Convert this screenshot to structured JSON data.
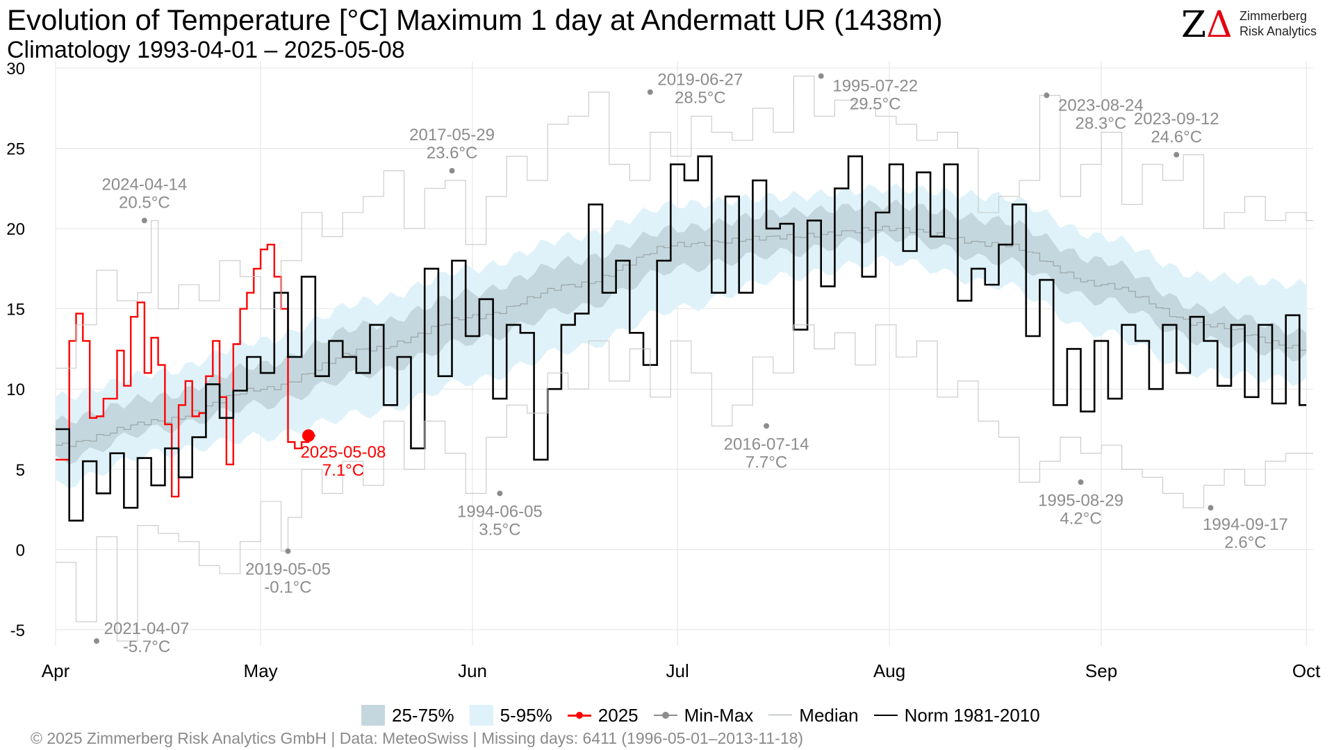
{
  "title": "Evolution of Temperature [°C] Maximum 1 day at Andermatt  UR (1438m)",
  "subtitle": "Climatology 1993-04-01 – 2025-05-08",
  "logo": {
    "brand": "ZA",
    "line1": "Zimmerberg",
    "line2": "Risk Analytics"
  },
  "legend": {
    "band_25_75": "25-75%",
    "band_5_95": "5-95%",
    "current_year": "2025",
    "min_max": "Min-Max",
    "median": "Median",
    "norm": "Norm 1981-2010"
  },
  "footer": "©  2025 Zimmerberg Risk Analytics GmbH | Data: MeteoSwiss | Missing days: 6411 (1996-05-01–2013-11-18)",
  "colors": {
    "current_year": "#ff0000",
    "norm": "#000000",
    "minmax": "#8c8c8c",
    "band_inner": "#c5d7de",
    "band_outer": "#dff2fa",
    "median": "#9aa5a8"
  },
  "chart_data": {
    "type": "line",
    "step": true,
    "x_unit": "day of season (0 = 1 Apr)",
    "x_ticks": [
      {
        "day": 0,
        "label": "Apr"
      },
      {
        "day": 30,
        "label": "May"
      },
      {
        "day": 61,
        "label": "Jun"
      },
      {
        "day": 91,
        "label": "Jul"
      },
      {
        "day": 122,
        "label": "Aug"
      },
      {
        "day": 153,
        "label": "Sep"
      },
      {
        "day": 183,
        "label": "Oct"
      }
    ],
    "xlim": [
      0,
      184
    ],
    "ylim": [
      -6,
      30
    ],
    "y_ticks": [
      -5,
      0,
      5,
      10,
      15,
      20,
      25,
      30
    ],
    "grid": true,
    "legend_position": "bottom",
    "bands": {
      "knots_day": [
        0,
        15,
        30,
        46,
        61,
        76,
        91,
        107,
        122,
        138,
        153,
        168,
        183
      ],
      "p5": [
        4.0,
        6.0,
        7.0,
        8.5,
        10.5,
        12.5,
        15.0,
        17.0,
        18.0,
        16.5,
        13.5,
        11.0,
        10.5
      ],
      "p25": [
        5.5,
        7.5,
        9.0,
        11.0,
        13.0,
        15.0,
        17.5,
        18.5,
        19.5,
        18.0,
        15.5,
        13.0,
        12.0
      ],
      "median": [
        6.5,
        8.0,
        10.0,
        12.5,
        14.5,
        16.5,
        19.0,
        19.5,
        20.0,
        19.0,
        16.5,
        14.0,
        12.5
      ],
      "p75": [
        8.0,
        9.5,
        11.5,
        14.0,
        16.0,
        18.0,
        20.0,
        21.0,
        21.5,
        20.5,
        18.0,
        15.0,
        13.5
      ],
      "p95": [
        9.5,
        11.0,
        13.0,
        15.5,
        17.5,
        19.5,
        21.5,
        22.0,
        22.5,
        22.0,
        19.5,
        17.0,
        16.5
      ]
    },
    "series": [
      {
        "name": "2025",
        "color": "#ff0000",
        "days": [
          0,
          1,
          2,
          3,
          4,
          5,
          6,
          7,
          8,
          9,
          10,
          11,
          12,
          13,
          14,
          15,
          16,
          17,
          18,
          19,
          20,
          21,
          22,
          23,
          24,
          25,
          26,
          27,
          28,
          29,
          30,
          31,
          32,
          33,
          34,
          35,
          36,
          37
        ],
        "values": [
          5.6,
          5.6,
          13.0,
          14.7,
          13.0,
          8.2,
          8.3,
          9.4,
          9.4,
          12.4,
          10.2,
          14.5,
          15.4,
          11.0,
          13.2,
          11.5,
          7.8,
          3.3,
          9.0,
          10.5,
          8.3,
          8.5,
          10.8,
          13.0,
          9.5,
          5.3,
          12.8,
          15.0,
          16.0,
          17.5,
          18.7,
          19.0,
          17.0,
          15.0,
          6.7,
          6.3,
          6.7,
          7.1
        ]
      },
      {
        "name": "Norm 1981-2010",
        "color": "#000000",
        "days": [
          0,
          2,
          4,
          6,
          8,
          10,
          12,
          14,
          16,
          18,
          20,
          22,
          24,
          26,
          28,
          30,
          32,
          34,
          36,
          38,
          40,
          42,
          44,
          46,
          48,
          50,
          52,
          54,
          56,
          58,
          60,
          62,
          64,
          66,
          68,
          70,
          72,
          74,
          76,
          78,
          80,
          82,
          84,
          86,
          88,
          90,
          92,
          94,
          96,
          98,
          100,
          102,
          104,
          106,
          108,
          110,
          112,
          114,
          116,
          118,
          120,
          122,
          124,
          126,
          128,
          130,
          132,
          134,
          136,
          138,
          140,
          142,
          144,
          146,
          148,
          150,
          152,
          154,
          156,
          158,
          160,
          162,
          164,
          166,
          168,
          170,
          172,
          174,
          176,
          178,
          180,
          182
        ],
        "values": [
          7.5,
          1.8,
          5.5,
          3.5,
          6.0,
          2.6,
          5.7,
          4.0,
          6.3,
          4.5,
          7.0,
          10.3,
          8.2,
          9.9,
          12.0,
          11.0,
          16.0,
          12.0,
          17.0,
          10.8,
          13.0,
          12.0,
          11.0,
          14.0,
          9.0,
          12.0,
          6.3,
          17.5,
          10.8,
          18.0,
          13.3,
          15.6,
          9.4,
          14.0,
          13.5,
          5.6,
          10.0,
          14.0,
          14.7,
          21.5,
          16.0,
          18.0,
          13.5,
          11.5,
          18.0,
          24.0,
          23.0,
          24.5,
          16.0,
          22.0,
          16.0,
          23.0,
          20.0,
          20.3,
          13.7,
          20.5,
          16.4,
          22.5,
          24.5,
          17.0,
          21.0,
          24.0,
          18.6,
          23.5,
          19.5,
          24.0,
          15.5,
          17.5,
          16.5,
          19.0,
          21.5,
          13.3,
          16.8,
          9.0,
          12.5,
          8.6,
          13.0,
          9.4,
          14.0,
          13.0,
          10.0,
          14.0,
          11.0,
          14.5,
          13.0,
          10.2,
          14.0,
          9.5,
          14.0,
          9.1,
          14.6,
          9.0
        ]
      },
      {
        "name": "Max",
        "color": "#8c8c8c",
        "days": [
          0,
          3,
          6,
          9,
          12,
          14,
          15,
          18,
          21,
          24,
          27,
          30,
          33,
          36,
          39,
          42,
          45,
          48,
          51,
          54,
          57,
          60,
          63,
          66,
          69,
          72,
          75,
          78,
          81,
          84,
          87,
          90,
          93,
          96,
          99,
          102,
          105,
          108,
          111,
          114,
          117,
          120,
          123,
          126,
          129,
          132,
          135,
          138,
          141,
          144,
          147,
          150,
          153,
          156,
          159,
          162,
          165,
          168,
          171,
          174,
          177,
          180,
          183
        ],
        "values": [
          11.3,
          14.0,
          17.4,
          15.5,
          16.0,
          20.5,
          15.0,
          16.5,
          15.5,
          18.0,
          17.0,
          15.0,
          18.0,
          21.0,
          19.5,
          21.0,
          22.0,
          23.6,
          20.0,
          22.5,
          23.0,
          19.0,
          22.0,
          24.5,
          23.0,
          26.5,
          27.0,
          28.5,
          24.0,
          23.0,
          26.0,
          24.5,
          27.0,
          26.0,
          25.5,
          27.5,
          26.0,
          29.5,
          27.0,
          28.0,
          27.5,
          27.0,
          26.5,
          25.5,
          26.0,
          25.0,
          21.0,
          22.0,
          23.0,
          28.3,
          22.0,
          24.0,
          26.0,
          21.5,
          24.0,
          23.0,
          24.6,
          20.0,
          21.0,
          22.0,
          20.5,
          21.0,
          20.5
        ]
      },
      {
        "name": "Min",
        "color": "#8c8c8c",
        "days": [
          0,
          3,
          6,
          9,
          12,
          15,
          18,
          21,
          24,
          27,
          30,
          33,
          34,
          36,
          39,
          42,
          45,
          48,
          51,
          54,
          57,
          60,
          63,
          66,
          69,
          72,
          75,
          78,
          81,
          84,
          87,
          90,
          93,
          96,
          99,
          102,
          105,
          108,
          111,
          114,
          117,
          120,
          123,
          126,
          129,
          132,
          135,
          138,
          141,
          144,
          147,
          150,
          153,
          156,
          159,
          162,
          165,
          168,
          171,
          174,
          177,
          180,
          183
        ],
        "values": [
          -0.8,
          -4.5,
          0.8,
          -5.7,
          1.5,
          1.0,
          0.5,
          -1.0,
          -1.5,
          0.5,
          3.0,
          -0.1,
          2.0,
          5.0,
          3.5,
          5.5,
          4.0,
          8.0,
          5.0,
          8.0,
          6.0,
          3.5,
          7.0,
          9.0,
          8.5,
          11.0,
          10.0,
          13.0,
          10.5,
          12.5,
          9.5,
          13.0,
          11.0,
          7.7,
          9.0,
          12.0,
          11.0,
          14.0,
          12.5,
          13.5,
          11.5,
          14.0,
          12.0,
          13.0,
          9.5,
          10.5,
          8.0,
          7.0,
          4.2,
          5.5,
          7.0,
          6.0,
          6.5,
          5.0,
          4.5,
          3.5,
          2.6,
          4.0,
          5.0,
          4.0,
          5.5,
          6.0,
          6.0
        ]
      }
    ],
    "annotations": [
      {
        "date": "2024-04-14",
        "value": "20.5°C",
        "day": 13,
        "y": 20.5,
        "placement": "above",
        "kind": "max"
      },
      {
        "date": "2021-04-07",
        "value": "-5.7°C",
        "day": 6,
        "y": -5.7,
        "placement": "above-right",
        "kind": "min"
      },
      {
        "date": "2017-05-29",
        "value": "23.6°C",
        "day": 58,
        "y": 23.6,
        "placement": "above",
        "kind": "max"
      },
      {
        "date": "2019-05-05",
        "value": "-0.1°C",
        "day": 34,
        "y": -0.1,
        "placement": "below",
        "kind": "min"
      },
      {
        "date": "2019-06-27",
        "value": "28.5°C",
        "day": 87,
        "y": 28.5,
        "placement": "above-right",
        "kind": "max"
      },
      {
        "date": "1994-06-05",
        "value": "3.5°C",
        "day": 65,
        "y": 3.5,
        "placement": "below",
        "kind": "min"
      },
      {
        "date": "1995-07-22",
        "value": "29.5°C",
        "day": 112,
        "y": 29.5,
        "placement": "right",
        "kind": "max"
      },
      {
        "date": "2016-07-14",
        "value": "7.7°C",
        "day": 104,
        "y": 7.7,
        "placement": "below",
        "kind": "min"
      },
      {
        "date": "2023-08-24",
        "value": "28.3°C",
        "day": 145,
        "y": 28.3,
        "placement": "right",
        "kind": "max"
      },
      {
        "date": "1995-08-29",
        "value": "4.2°C",
        "day": 150,
        "y": 4.2,
        "placement": "below",
        "kind": "min"
      },
      {
        "date": "2023-09-12",
        "value": "24.6°C",
        "day": 164,
        "y": 24.6,
        "placement": "above",
        "kind": "max"
      },
      {
        "date": "1994-09-17",
        "value": "2.6°C",
        "day": 169,
        "y": 2.6,
        "placement": "below-right",
        "kind": "min"
      },
      {
        "date": "2025-05-08",
        "value": "7.1°C",
        "day": 37,
        "y": 7.1,
        "placement": "below-right",
        "kind": "current"
      }
    ]
  }
}
